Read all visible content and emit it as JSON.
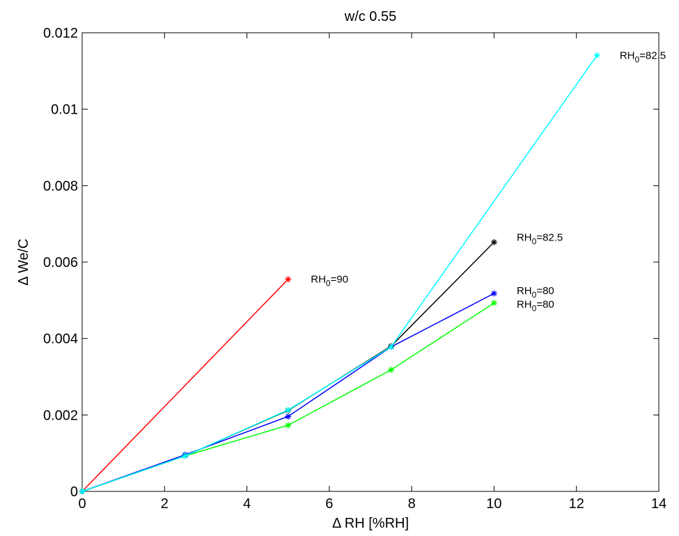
{
  "chart_data": {
    "type": "line",
    "title": "w/c 0.55",
    "xlabel": "Δ RH [%RH]",
    "ylabel": "Δ We/C",
    "xlim": [
      0,
      14
    ],
    "ylim": [
      0,
      0.012
    ],
    "xticks": [
      0,
      2,
      4,
      6,
      8,
      10,
      12,
      14
    ],
    "yticks": [
      0,
      0.002,
      0.004,
      0.006,
      0.008,
      0.01,
      0.012
    ],
    "xtick_labels": [
      "0",
      "2",
      "4",
      "6",
      "8",
      "10",
      "12",
      "14"
    ],
    "ytick_labels": [
      "0",
      "0.002",
      "0.004",
      "0.006",
      "0.008",
      "0.01",
      "0.012"
    ],
    "grid": false,
    "marker": "asterisk",
    "series": [
      {
        "color": "#ff0000",
        "x": [
          0,
          5
        ],
        "y": [
          0,
          0.00555
        ]
      },
      {
        "color": "#00ff00",
        "x": [
          0,
          2.5,
          5,
          7.5,
          10
        ],
        "y": [
          0,
          0.00093,
          0.00173,
          0.00318,
          0.00493
        ]
      },
      {
        "color": "#0000ff",
        "x": [
          0,
          2.5,
          5,
          7.5,
          10
        ],
        "y": [
          0,
          0.00096,
          0.00196,
          0.00378,
          0.00518
        ]
      },
      {
        "color": "#000000",
        "x": [
          0,
          2.5,
          5,
          7.5,
          10
        ],
        "y": [
          0,
          0.00093,
          0.00212,
          0.0038,
          0.00652
        ]
      },
      {
        "color": "#00ffff",
        "x": [
          0,
          2.5,
          5,
          7.5,
          12.5
        ],
        "y": [
          0,
          0.00093,
          0.00213,
          0.00378,
          0.01141
        ]
      }
    ],
    "annotations": [
      {
        "base": "RH",
        "sub": "0",
        "rest": "=90",
        "x": 5.55,
        "y": 0.00555
      },
      {
        "base": "RH",
        "sub": "0",
        "rest": "=82.5",
        "x": 13.05,
        "y": 0.01141
      },
      {
        "base": "RH",
        "sub": "0",
        "rest": "=82.5",
        "x": 10.55,
        "y": 0.00665
      },
      {
        "base": "RH",
        "sub": "0",
        "rest": "=80",
        "x": 10.55,
        "y": 0.00525
      },
      {
        "base": "RH",
        "sub": "0",
        "rest": "=80",
        "x": 10.55,
        "y": 0.0049
      }
    ]
  }
}
